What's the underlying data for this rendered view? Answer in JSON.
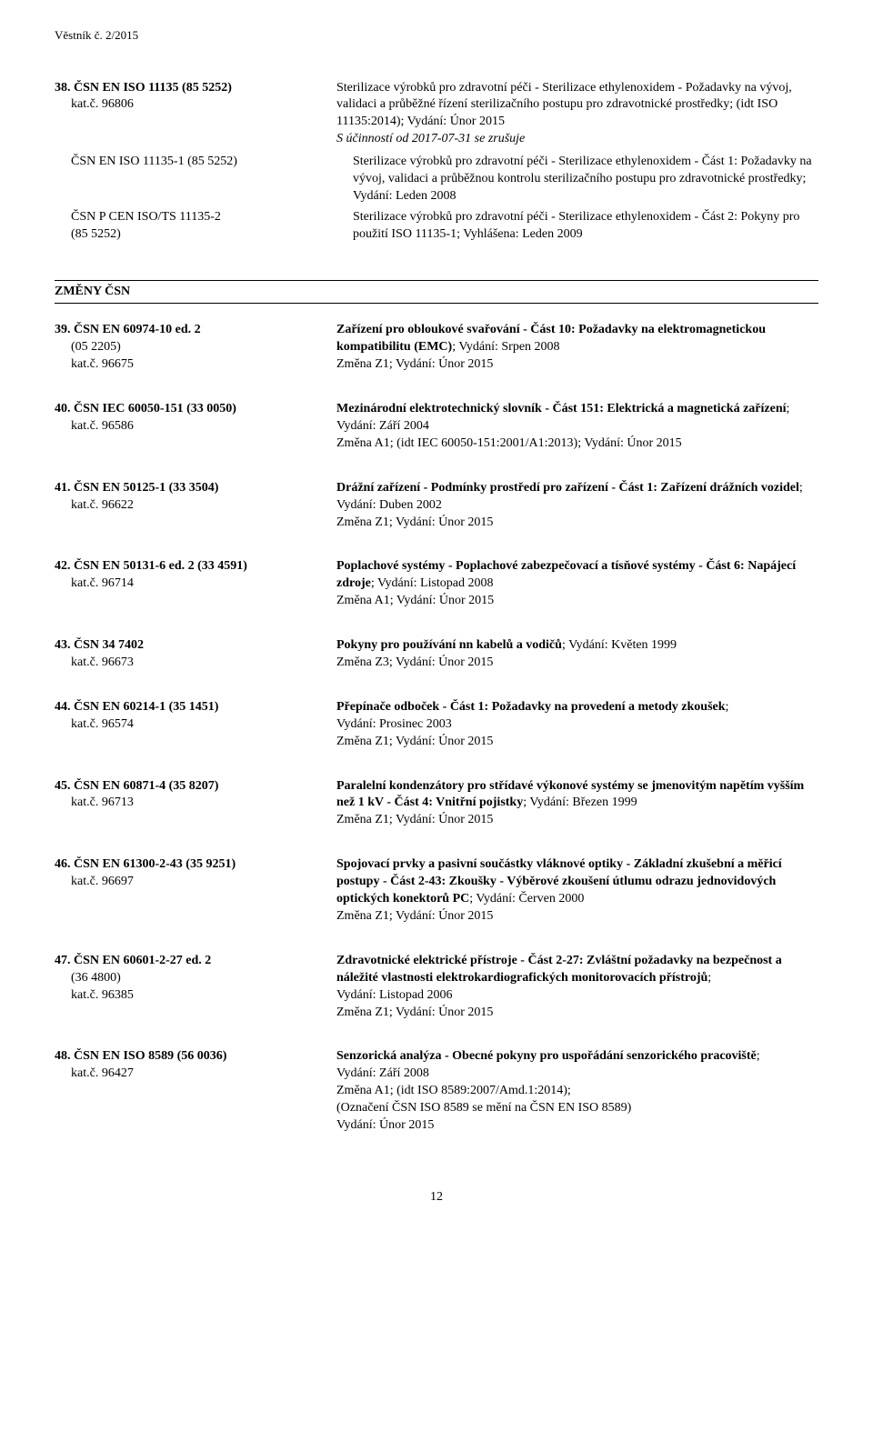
{
  "header": "Věstník č. 2/2015",
  "page_number": "12",
  "group38": {
    "main": {
      "left_title": "38. ČSN EN ISO 11135 (85 5252)",
      "left_sub": "kat.č. 96806",
      "right": "Sterilizace výrobků pro zdravotní péči - Sterilizace ethylenoxidem - Požadavky na vývoj, validaci a průběžné řízení sterilizačního postupu pro zdravotnické prostředky; (idt ISO 11135:2014); Vydání: Únor 2015",
      "right_extra": "S účinností od 2017-07-31 se zrušuje"
    },
    "sub1": {
      "left": "ČSN EN ISO 11135-1 (85 5252)",
      "right": "Sterilizace výrobků pro zdravotní péči - Sterilizace ethylenoxidem - Část 1: Požadavky na vývoj, validaci a průběžnou kontrolu sterilizačního postupu pro zdravotnické prostředky; Vydání: Leden 2008"
    },
    "sub2": {
      "left_a": "ČSN P CEN ISO/TS 11135-2",
      "left_b": "(85 5252)",
      "right": "Sterilizace výrobků pro zdravotní péči - Sterilizace ethylenoxidem - Část 2: Pokyny pro použití ISO 11135-1; Vyhlášena: Leden 2009"
    }
  },
  "section_title": "ZMĚNY ČSN",
  "items": [
    {
      "l1": "39. ČSN EN 60974-10 ed. 2",
      "l2": "(05 2205)",
      "l3": "kat.č. 96675",
      "r_bold": "Zařízení pro obloukové svařování - Část 10: Požadavky na elektromagnetickou kompatibilitu (EMC)",
      "r_tail": "; Vydání: Srpen 2008",
      "r_lines": [
        "Změna Z1; Vydání: Únor 2015"
      ]
    },
    {
      "l1": "40. ČSN IEC 60050-151 (33 0050)",
      "l2": "kat.č. 96586",
      "l3": "",
      "r_bold": "Mezinárodní elektrotechnický slovník - Část 151: Elektrická a magnetická zařízení",
      "r_tail": "; Vydání: Září 2004",
      "r_lines": [
        "Změna A1; (idt IEC 60050-151:2001/A1:2013); Vydání: Únor 2015"
      ]
    },
    {
      "l1": "41. ČSN EN 50125-1 (33 3504)",
      "l2": "kat.č. 96622",
      "l3": "",
      "r_bold": "Drážní zařízení - Podmínky prostředí pro zařízení - Část 1: Zařízení drážních vozidel",
      "r_tail": "; Vydání: Duben 2002",
      "r_lines": [
        "Změna Z1; Vydání: Únor 2015"
      ]
    },
    {
      "l1": "42. ČSN EN 50131-6 ed. 2 (33 4591)",
      "l2": "kat.č. 96714",
      "l3": "",
      "r_bold": "Poplachové systémy - Poplachové zabezpečovací a tísňové systémy - Část 6: Napájecí zdroje",
      "r_tail": "; Vydání: Listopad 2008",
      "r_lines": [
        "Změna A1; Vydání: Únor 2015"
      ]
    },
    {
      "l1": "43. ČSN 34 7402",
      "l2": "kat.č. 96673",
      "l3": "",
      "r_bold": "Pokyny pro používání nn kabelů a vodičů",
      "r_tail": "; Vydání: Květen 1999",
      "r_lines": [
        "Změna Z3; Vydání: Únor 2015"
      ]
    },
    {
      "l1": "44. ČSN EN 60214-1 (35 1451)",
      "l2": "kat.č. 96574",
      "l3": "",
      "r_bold": "Přepínače odboček - Část 1: Požadavky na provedení a metody zkoušek",
      "r_tail": ";",
      "r_lines": [
        "Vydání: Prosinec 2003",
        "Změna Z1; Vydání: Únor 2015"
      ]
    },
    {
      "l1": "45. ČSN EN 60871-4 (35 8207)",
      "l2": "kat.č. 96713",
      "l3": "",
      "r_bold": "Paralelní kondenzátory pro střídavé výkonové systémy se jmenovitým napětím vyšším než 1 kV - Část 4: Vnitřní pojistky",
      "r_tail": "; Vydání: Březen 1999",
      "r_lines": [
        "Změna Z1; Vydání: Únor 2015"
      ]
    },
    {
      "l1": "46. ČSN EN 61300-2-43 (35 9251)",
      "l2": "kat.č. 96697",
      "l3": "",
      "r_bold": "Spojovací prvky a pasivní součástky vláknové optiky - Základní zkušební a měřicí postupy - Část 2-43: Zkoušky - Výběrové zkoušení útlumu odrazu jednovidových optických konektorů PC",
      "r_tail": "; Vydání: Červen 2000",
      "r_lines": [
        "Změna Z1; Vydání: Únor 2015"
      ]
    },
    {
      "l1": "47. ČSN EN 60601-2-27 ed. 2",
      "l2": "(36 4800)",
      "l3": "kat.č. 96385",
      "r_bold": "Zdravotnické elektrické přístroje - Část 2-27: Zvláštní požadavky na bezpečnost a náležité vlastnosti elektrokardiografických monitorovacích přístrojů",
      "r_tail": ";",
      "r_lines": [
        "Vydání: Listopad 2006",
        "Změna Z1; Vydání: Únor 2015"
      ]
    },
    {
      "l1": "48. ČSN EN ISO 8589 (56 0036)",
      "l2": "kat.č. 96427",
      "l3": "",
      "r_bold": "Senzorická analýza - Obecné pokyny pro uspořádání senzorického pracoviště",
      "r_tail": ";",
      "r_lines": [
        "Vydání: Září 2008",
        "Změna A1; (idt ISO 8589:2007/Amd.1:2014);",
        "(Označení ČSN ISO 8589 se mění na ČSN EN ISO 8589)",
        "Vydání: Únor 2015"
      ]
    }
  ]
}
